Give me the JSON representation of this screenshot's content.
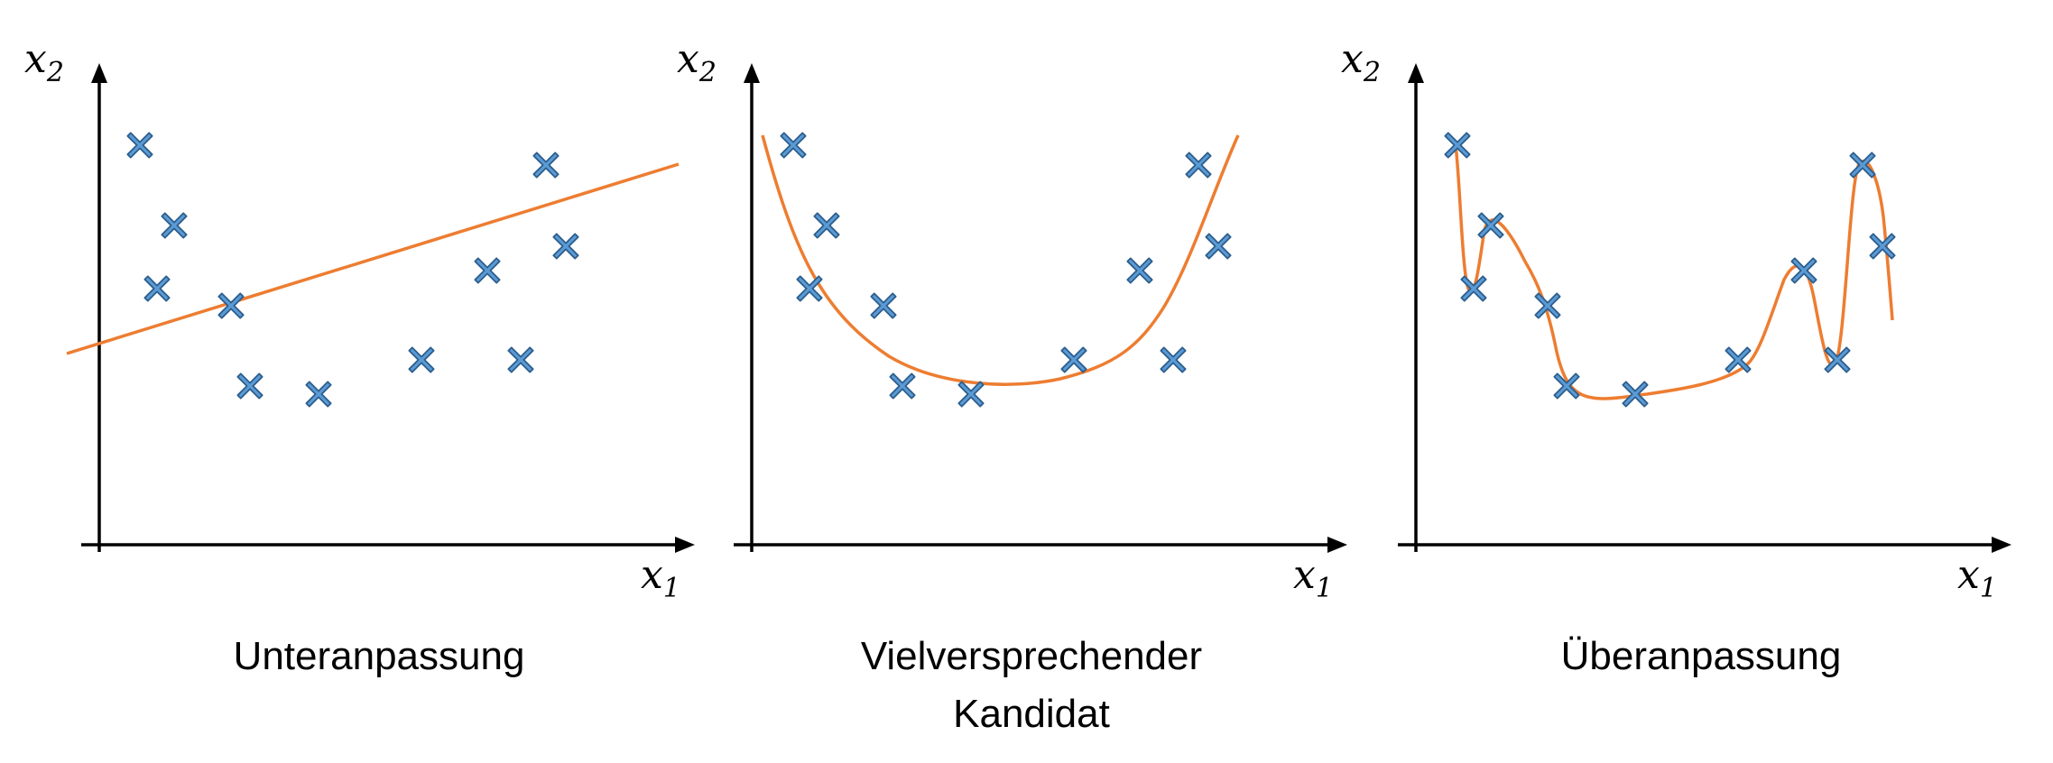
{
  "panels": [
    {
      "caption_lines": [
        "Unteranpassung"
      ],
      "x_axis_label": "x",
      "x_axis_subscript": "1",
      "y_axis_label": "x",
      "y_axis_subscript": "2"
    },
    {
      "caption_lines": [
        "Vielversprechender",
        "Kandidat"
      ],
      "x_axis_label": "x",
      "x_axis_subscript": "1",
      "y_axis_label": "x",
      "y_axis_subscript": "2"
    },
    {
      "caption_lines": [
        "Überanpassung"
      ],
      "x_axis_label": "x",
      "x_axis_subscript": "1",
      "y_axis_label": "x",
      "y_axis_subscript": "2"
    }
  ],
  "colors": {
    "marker_fill": "#5b9bd5",
    "marker_stroke": "#2e5f8e",
    "curve": "#ed7d31",
    "axis": "#000000"
  },
  "icons": {
    "data_point": "x-marker-icon"
  }
}
